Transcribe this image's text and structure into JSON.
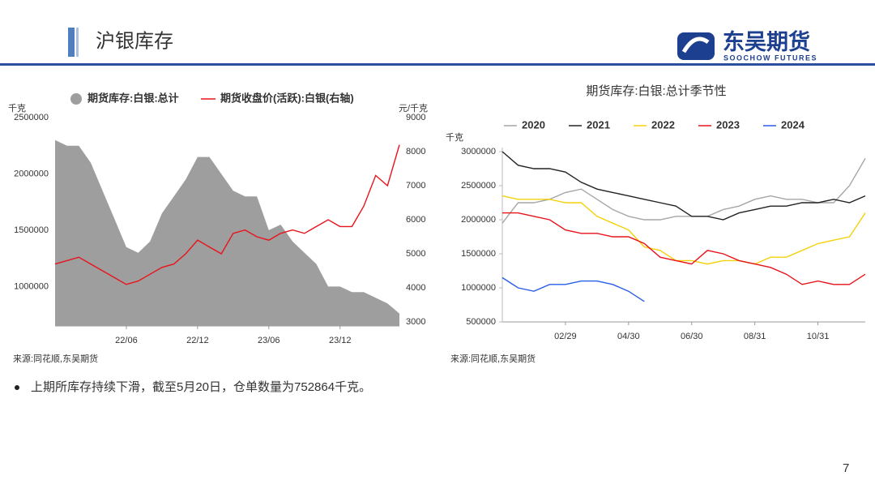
{
  "header": {
    "title": "沪银库存",
    "logo": "东吴期货",
    "logo_sub": "SOOCHOW FUTURES"
  },
  "bullet": "上期所库存持续下滑，截至5月20日，仓单数量为752864千克。",
  "page_number": "7",
  "chart_data": [
    {
      "type": "combo",
      "y_unit": "千克",
      "y2_unit": "元/千克",
      "source": "来源:同花顺,东吴期货",
      "categories": [
        null,
        null,
        null,
        null,
        null,
        null,
        "22/06",
        null,
        null,
        null,
        null,
        null,
        "22/12",
        null,
        null,
        null,
        null,
        null,
        "23/06",
        null,
        null,
        null,
        null,
        null,
        "23/12",
        null,
        null,
        null,
        null,
        null
      ],
      "series": [
        {
          "name": "期货库存:白银:总计",
          "kind": "area",
          "color": "#9e9e9e",
          "values": [
            2300000,
            2250000,
            2250000,
            2100000,
            1850000,
            1600000,
            1350000,
            1300000,
            1400000,
            1650000,
            1800000,
            1950000,
            2150000,
            2150000,
            2000000,
            1850000,
            1800000,
            1800000,
            1500000,
            1550000,
            1400000,
            1300000,
            1200000,
            1000000,
            1000000,
            950000,
            950000,
            900000,
            850000,
            760000
          ]
        },
        {
          "name": "期货收盘价(活跃):白银(右轴)",
          "kind": "line",
          "axis": "y2",
          "color": "#e8131b",
          "values": [
            4700,
            4800,
            4900,
            4700,
            4500,
            4300,
            4100,
            4200,
            4400,
            4600,
            4700,
            5000,
            5400,
            5200,
            5000,
            5600,
            5700,
            5500,
            5400,
            5600,
            5700,
            5600,
            5800,
            6000,
            5800,
            5800,
            6400,
            7300,
            7000,
            8200
          ]
        }
      ],
      "ylim": [
        650000,
        2500000
      ],
      "yticks": [
        1000000,
        1500000,
        2000000,
        2500000
      ],
      "y2lim": [
        2880,
        9000
      ],
      "y2ticks": [
        3000,
        4000,
        5000,
        6000,
        7000,
        8000,
        9000
      ]
    },
    {
      "type": "line",
      "title": "期货库存:白银:总计季节性",
      "y_unit": "千克",
      "source": "来源:同花顺,东吴期货",
      "categories": [
        null,
        null,
        null,
        null,
        "02/29",
        null,
        null,
        null,
        "04/30",
        null,
        null,
        null,
        "06/30",
        null,
        null,
        null,
        "08/31",
        null,
        null,
        null,
        "10/31",
        null,
        null,
        null
      ],
      "series": [
        {
          "name": "2020",
          "color": "#a6a6a6",
          "values": [
            1950000,
            2250000,
            2250000,
            2300000,
            2400000,
            2450000,
            2300000,
            2150000,
            2050000,
            2000000,
            2000000,
            2050000,
            2050000,
            2050000,
            2150000,
            2200000,
            2300000,
            2350000,
            2300000,
            2300000,
            2250000,
            2250000,
            2500000,
            2900000
          ]
        },
        {
          "name": "2021",
          "color": "#222222",
          "values": [
            3000000,
            2800000,
            2750000,
            2750000,
            2700000,
            2550000,
            2450000,
            2400000,
            2350000,
            2300000,
            2250000,
            2200000,
            2050000,
            2050000,
            2000000,
            2100000,
            2150000,
            2200000,
            2200000,
            2250000,
            2250000,
            2300000,
            2250000,
            2350000
          ]
        },
        {
          "name": "2022",
          "color": "#f5d10a",
          "values": [
            2350000,
            2300000,
            2300000,
            2300000,
            2250000,
            2250000,
            2050000,
            1950000,
            1850000,
            1600000,
            1550000,
            1400000,
            1400000,
            1350000,
            1400000,
            1400000,
            1350000,
            1450000,
            1450000,
            1550000,
            1650000,
            1700000,
            1750000,
            2100000
          ]
        },
        {
          "name": "2023",
          "color": "#e8131b",
          "values": [
            2100000,
            2100000,
            2050000,
            2000000,
            1850000,
            1800000,
            1800000,
            1750000,
            1750000,
            1650000,
            1450000,
            1400000,
            1350000,
            1550000,
            1500000,
            1400000,
            1350000,
            1300000,
            1200000,
            1050000,
            1100000,
            1050000,
            1050000,
            1200000
          ]
        },
        {
          "name": "2024",
          "color": "#2a5ee8",
          "values": [
            1150000,
            1000000,
            950000,
            1050000,
            1050000,
            1100000,
            1100000,
            1050000,
            950000,
            800000,
            null,
            null,
            null,
            null,
            null,
            null,
            null,
            null,
            null,
            null,
            null,
            null,
            null,
            null
          ]
        }
      ],
      "ylim": [
        500000,
        3000000
      ],
      "yticks": [
        500000,
        1000000,
        1500000,
        2000000,
        2500000,
        3000000
      ]
    }
  ]
}
